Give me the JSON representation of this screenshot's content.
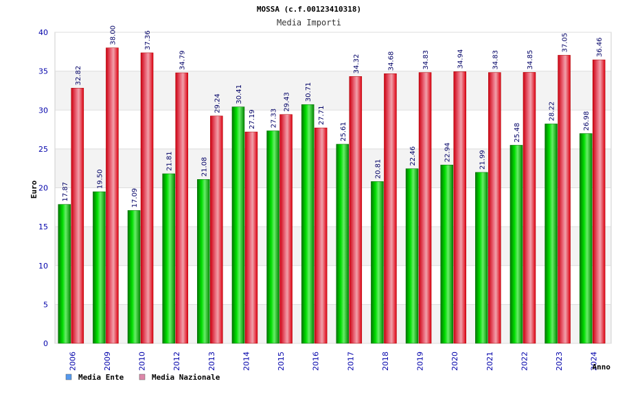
{
  "chart_data": {
    "type": "bar",
    "title": "MOSSA (c.f.00123410318)",
    "subtitle": "Media Importi",
    "xlabel": "Anno",
    "ylabel": "Euro",
    "ylim": [
      0,
      40
    ],
    "yticks": [
      0,
      5,
      10,
      15,
      20,
      25,
      30,
      35,
      40
    ],
    "grid": true,
    "legend_position": "bottom-left",
    "categories": [
      "2006",
      "2009",
      "2010",
      "2012",
      "2013",
      "2014",
      "2015",
      "2016",
      "2017",
      "2018",
      "2019",
      "2020",
      "2021",
      "2022",
      "2023",
      "2024"
    ],
    "series": [
      {
        "name": "Media Ente",
        "color": "#00bb00",
        "legend_color": "#5599ee",
        "values": [
          17.87,
          19.5,
          17.09,
          21.81,
          21.08,
          30.41,
          27.33,
          30.71,
          25.61,
          20.81,
          22.46,
          22.94,
          21.99,
          25.48,
          28.22,
          26.98
        ],
        "labels": [
          "17.87",
          "19.50",
          "17.09",
          "21.81",
          "21.08",
          "30.41",
          "27.33",
          "30.71",
          "25.61",
          "20.81",
          "22.46",
          "22.94",
          "21.99",
          "25.48",
          "28.22",
          "26.98"
        ]
      },
      {
        "name": "Media Nazionale",
        "color": "#ee1122",
        "legend_color": "#dd88aa",
        "values": [
          32.82,
          38.0,
          37.36,
          34.79,
          29.24,
          27.19,
          29.43,
          27.71,
          34.32,
          34.68,
          34.83,
          34.94,
          34.83,
          34.85,
          37.05,
          36.46
        ],
        "labels": [
          "32.82",
          "38.00",
          "37.36",
          "34.79",
          "29.24",
          "27.19",
          "29.43",
          "27.71",
          "34.32",
          "34.68",
          "34.83",
          "34.94",
          "34.83",
          "34.85",
          "37.05",
          "36.46"
        ]
      }
    ]
  }
}
